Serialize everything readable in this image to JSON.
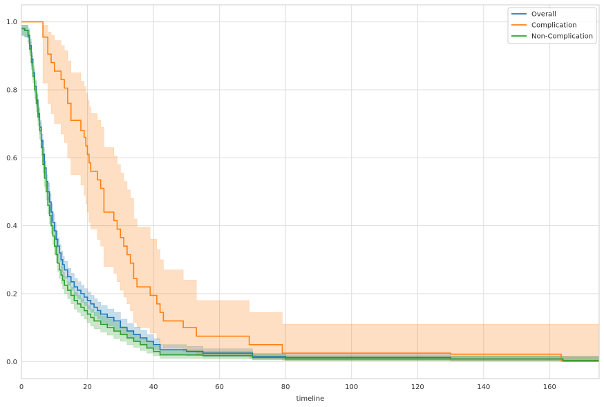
{
  "chart_data": {
    "type": "line",
    "title": "",
    "xlabel": "timeline",
    "ylabel": "",
    "xlim": [
      0,
      175
    ],
    "ylim": [
      -0.05,
      1.05
    ],
    "xticks": [
      0,
      20,
      40,
      60,
      80,
      100,
      120,
      140,
      160
    ],
    "yticks": [
      0.0,
      0.2,
      0.4,
      0.6,
      0.8,
      1.0
    ],
    "xtick_labels": [
      "0",
      "20",
      "40",
      "60",
      "80",
      "100",
      "120",
      "140",
      "160"
    ],
    "ytick_labels": [
      "0.0",
      "0.2",
      "0.4",
      "0.6",
      "0.8",
      "1.0"
    ],
    "grid": true,
    "legend_position": "top-right",
    "series": [
      {
        "name": "Overall",
        "color": "#1f77b4",
        "x": [
          0,
          1,
          2,
          2.5,
          3,
          3.5,
          4,
          4.5,
          5,
          5.5,
          6,
          6.5,
          7,
          7.5,
          8,
          8.5,
          9,
          9.5,
          10,
          10.5,
          11,
          11.5,
          12,
          12.5,
          13,
          14,
          15,
          16,
          17,
          18,
          19,
          20,
          21,
          22,
          23,
          24,
          26,
          28,
          30,
          32,
          34,
          36,
          38,
          40,
          42,
          50,
          55,
          70,
          80,
          130,
          164,
          175
        ],
        "y": [
          0.98,
          0.975,
          0.96,
          0.93,
          0.89,
          0.85,
          0.81,
          0.77,
          0.73,
          0.69,
          0.65,
          0.61,
          0.57,
          0.53,
          0.5,
          0.47,
          0.44,
          0.41,
          0.385,
          0.36,
          0.34,
          0.32,
          0.3,
          0.285,
          0.27,
          0.25,
          0.235,
          0.22,
          0.21,
          0.2,
          0.19,
          0.18,
          0.17,
          0.16,
          0.15,
          0.14,
          0.13,
          0.12,
          0.1,
          0.09,
          0.08,
          0.07,
          0.06,
          0.05,
          0.035,
          0.03,
          0.025,
          0.015,
          0.012,
          0.008,
          0.003,
          0.003
        ],
        "ci_lower": [
          0.96,
          0.955,
          0.94,
          0.91,
          0.87,
          0.83,
          0.79,
          0.75,
          0.71,
          0.67,
          0.63,
          0.59,
          0.55,
          0.51,
          0.475,
          0.445,
          0.415,
          0.385,
          0.36,
          0.335,
          0.315,
          0.295,
          0.275,
          0.26,
          0.245,
          0.225,
          0.21,
          0.195,
          0.185,
          0.175,
          0.165,
          0.155,
          0.145,
          0.135,
          0.125,
          0.115,
          0.105,
          0.095,
          0.078,
          0.068,
          0.058,
          0.05,
          0.042,
          0.035,
          0.022,
          0.018,
          0.014,
          0.007,
          0.005,
          0.002,
          0.0,
          0.0
        ],
        "ci_upper": [
          0.99,
          0.99,
          0.98,
          0.95,
          0.91,
          0.87,
          0.83,
          0.79,
          0.75,
          0.71,
          0.67,
          0.63,
          0.59,
          0.55,
          0.525,
          0.495,
          0.465,
          0.435,
          0.41,
          0.385,
          0.365,
          0.345,
          0.325,
          0.31,
          0.295,
          0.275,
          0.26,
          0.245,
          0.235,
          0.225,
          0.215,
          0.205,
          0.195,
          0.185,
          0.175,
          0.165,
          0.155,
          0.145,
          0.125,
          0.112,
          0.102,
          0.092,
          0.08,
          0.068,
          0.05,
          0.045,
          0.038,
          0.025,
          0.022,
          0.016,
          0.016,
          0.016
        ]
      },
      {
        "name": "Complication",
        "color": "#ff7f0e",
        "x": [
          0,
          6.5,
          8,
          9,
          10,
          12,
          13,
          14,
          15,
          18,
          19,
          19.5,
          20,
          20.5,
          21,
          23,
          24,
          25,
          28,
          29,
          30,
          31,
          32,
          33,
          34,
          35,
          39,
          41,
          42,
          43,
          49,
          53,
          69,
          79,
          130,
          163.5,
          175
        ],
        "y": [
          1.0,
          0.955,
          0.905,
          0.88,
          0.855,
          0.83,
          0.805,
          0.76,
          0.71,
          0.68,
          0.66,
          0.635,
          0.61,
          0.585,
          0.56,
          0.535,
          0.51,
          0.44,
          0.415,
          0.39,
          0.365,
          0.34,
          0.315,
          0.29,
          0.245,
          0.22,
          0.195,
          0.17,
          0.145,
          0.12,
          0.1,
          0.075,
          0.05,
          0.025,
          0.022,
          0.003,
          0.003
        ],
        "ci_lower": [
          1.0,
          0.82,
          0.76,
          0.73,
          0.7,
          0.67,
          0.645,
          0.6,
          0.55,
          0.52,
          0.49,
          0.465,
          0.44,
          0.41,
          0.39,
          0.36,
          0.34,
          0.28,
          0.26,
          0.235,
          0.21,
          0.19,
          0.17,
          0.15,
          0.115,
          0.1,
          0.085,
          0.065,
          0.05,
          0.04,
          0.03,
          0.018,
          0.01,
          0.004,
          0.003,
          0.0,
          0.0
        ],
        "ci_upper": [
          1.0,
          0.99,
          0.97,
          0.96,
          0.945,
          0.93,
          0.915,
          0.885,
          0.85,
          0.825,
          0.81,
          0.79,
          0.77,
          0.75,
          0.73,
          0.71,
          0.69,
          0.63,
          0.605,
          0.58,
          0.555,
          0.53,
          0.505,
          0.48,
          0.42,
          0.395,
          0.36,
          0.33,
          0.3,
          0.27,
          0.24,
          0.18,
          0.145,
          0.11,
          0.11,
          0.11,
          0.11
        ]
      },
      {
        "name": "Non-Complication",
        "color": "#2ca02c",
        "x": [
          0,
          1,
          2,
          2.5,
          3,
          3.5,
          4,
          4.5,
          5,
          5.5,
          6,
          6.5,
          7,
          7.5,
          8,
          8.5,
          9,
          9.5,
          10,
          10.5,
          11,
          11.5,
          12,
          12.5,
          13,
          14,
          15,
          16,
          17,
          18,
          19,
          20,
          21,
          22,
          24,
          26,
          28,
          30,
          32,
          34,
          36,
          38,
          40,
          42,
          55,
          70,
          80,
          164,
          175
        ],
        "y": [
          0.98,
          0.975,
          0.955,
          0.92,
          0.88,
          0.84,
          0.8,
          0.76,
          0.72,
          0.68,
          0.63,
          0.58,
          0.54,
          0.5,
          0.46,
          0.43,
          0.4,
          0.37,
          0.34,
          0.315,
          0.29,
          0.27,
          0.255,
          0.24,
          0.225,
          0.21,
          0.195,
          0.18,
          0.17,
          0.16,
          0.15,
          0.14,
          0.13,
          0.12,
          0.11,
          0.1,
          0.09,
          0.08,
          0.07,
          0.06,
          0.05,
          0.04,
          0.03,
          0.02,
          0.018,
          0.012,
          0.008,
          0.003,
          0.003
        ],
        "ci_lower": [
          0.96,
          0.955,
          0.935,
          0.9,
          0.86,
          0.82,
          0.775,
          0.735,
          0.695,
          0.655,
          0.605,
          0.555,
          0.515,
          0.475,
          0.435,
          0.405,
          0.375,
          0.345,
          0.315,
          0.29,
          0.265,
          0.245,
          0.23,
          0.215,
          0.2,
          0.185,
          0.17,
          0.155,
          0.145,
          0.135,
          0.125,
          0.115,
          0.105,
          0.097,
          0.087,
          0.078,
          0.068,
          0.06,
          0.05,
          0.042,
          0.033,
          0.025,
          0.018,
          0.01,
          0.008,
          0.005,
          0.003,
          0.0,
          0.0
        ],
        "ci_upper": [
          0.99,
          0.99,
          0.975,
          0.94,
          0.9,
          0.86,
          0.825,
          0.785,
          0.745,
          0.705,
          0.655,
          0.605,
          0.565,
          0.525,
          0.485,
          0.455,
          0.425,
          0.395,
          0.365,
          0.34,
          0.315,
          0.295,
          0.28,
          0.265,
          0.25,
          0.235,
          0.22,
          0.205,
          0.195,
          0.185,
          0.175,
          0.165,
          0.155,
          0.145,
          0.135,
          0.125,
          0.115,
          0.103,
          0.092,
          0.08,
          0.07,
          0.058,
          0.045,
          0.035,
          0.03,
          0.022,
          0.017,
          0.015,
          0.015
        ]
      }
    ]
  }
}
